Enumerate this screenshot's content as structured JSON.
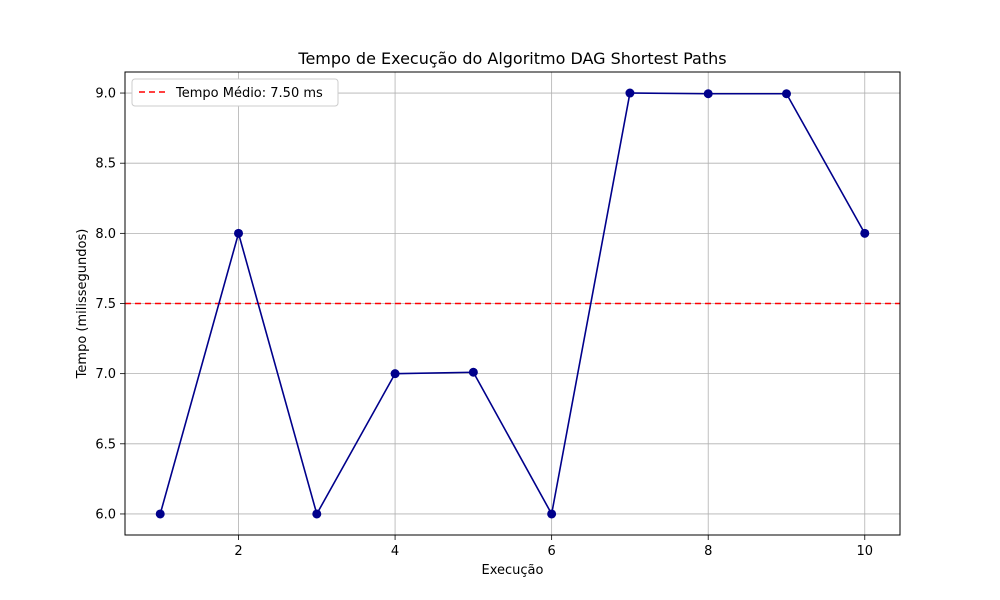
{
  "chart_data": {
    "type": "line",
    "title": "Tempo de Execução do Algoritmo DAG Shortest Paths",
    "xlabel": "Execução",
    "ylabel": "Tempo (milissegundos)",
    "x": [
      1,
      2,
      3,
      4,
      5,
      6,
      7,
      8,
      9,
      10
    ],
    "series": [
      {
        "values": [
          6.0,
          8.0,
          6.0,
          7.0,
          7.01,
          6.0,
          9.0,
          8.995,
          8.995,
          8.0
        ],
        "color": "#00008b",
        "marker": "circle"
      }
    ],
    "reference_line": {
      "value": 7.5,
      "label": "Tempo Médio: 7.50 ms",
      "color": "#ff0000",
      "style": "dashed"
    },
    "xlim": [
      0.55,
      10.45
    ],
    "ylim": [
      5.85,
      9.15
    ],
    "x_ticks": [
      2,
      4,
      6,
      8,
      10
    ],
    "y_ticks": [
      6.0,
      6.5,
      7.0,
      7.5,
      8.0,
      8.5,
      9.0
    ],
    "y_tick_labels": [
      "6.0",
      "6.5",
      "7.0",
      "7.5",
      "8.0",
      "8.5",
      "9.0"
    ],
    "grid": true,
    "legend_position": "top-left"
  }
}
